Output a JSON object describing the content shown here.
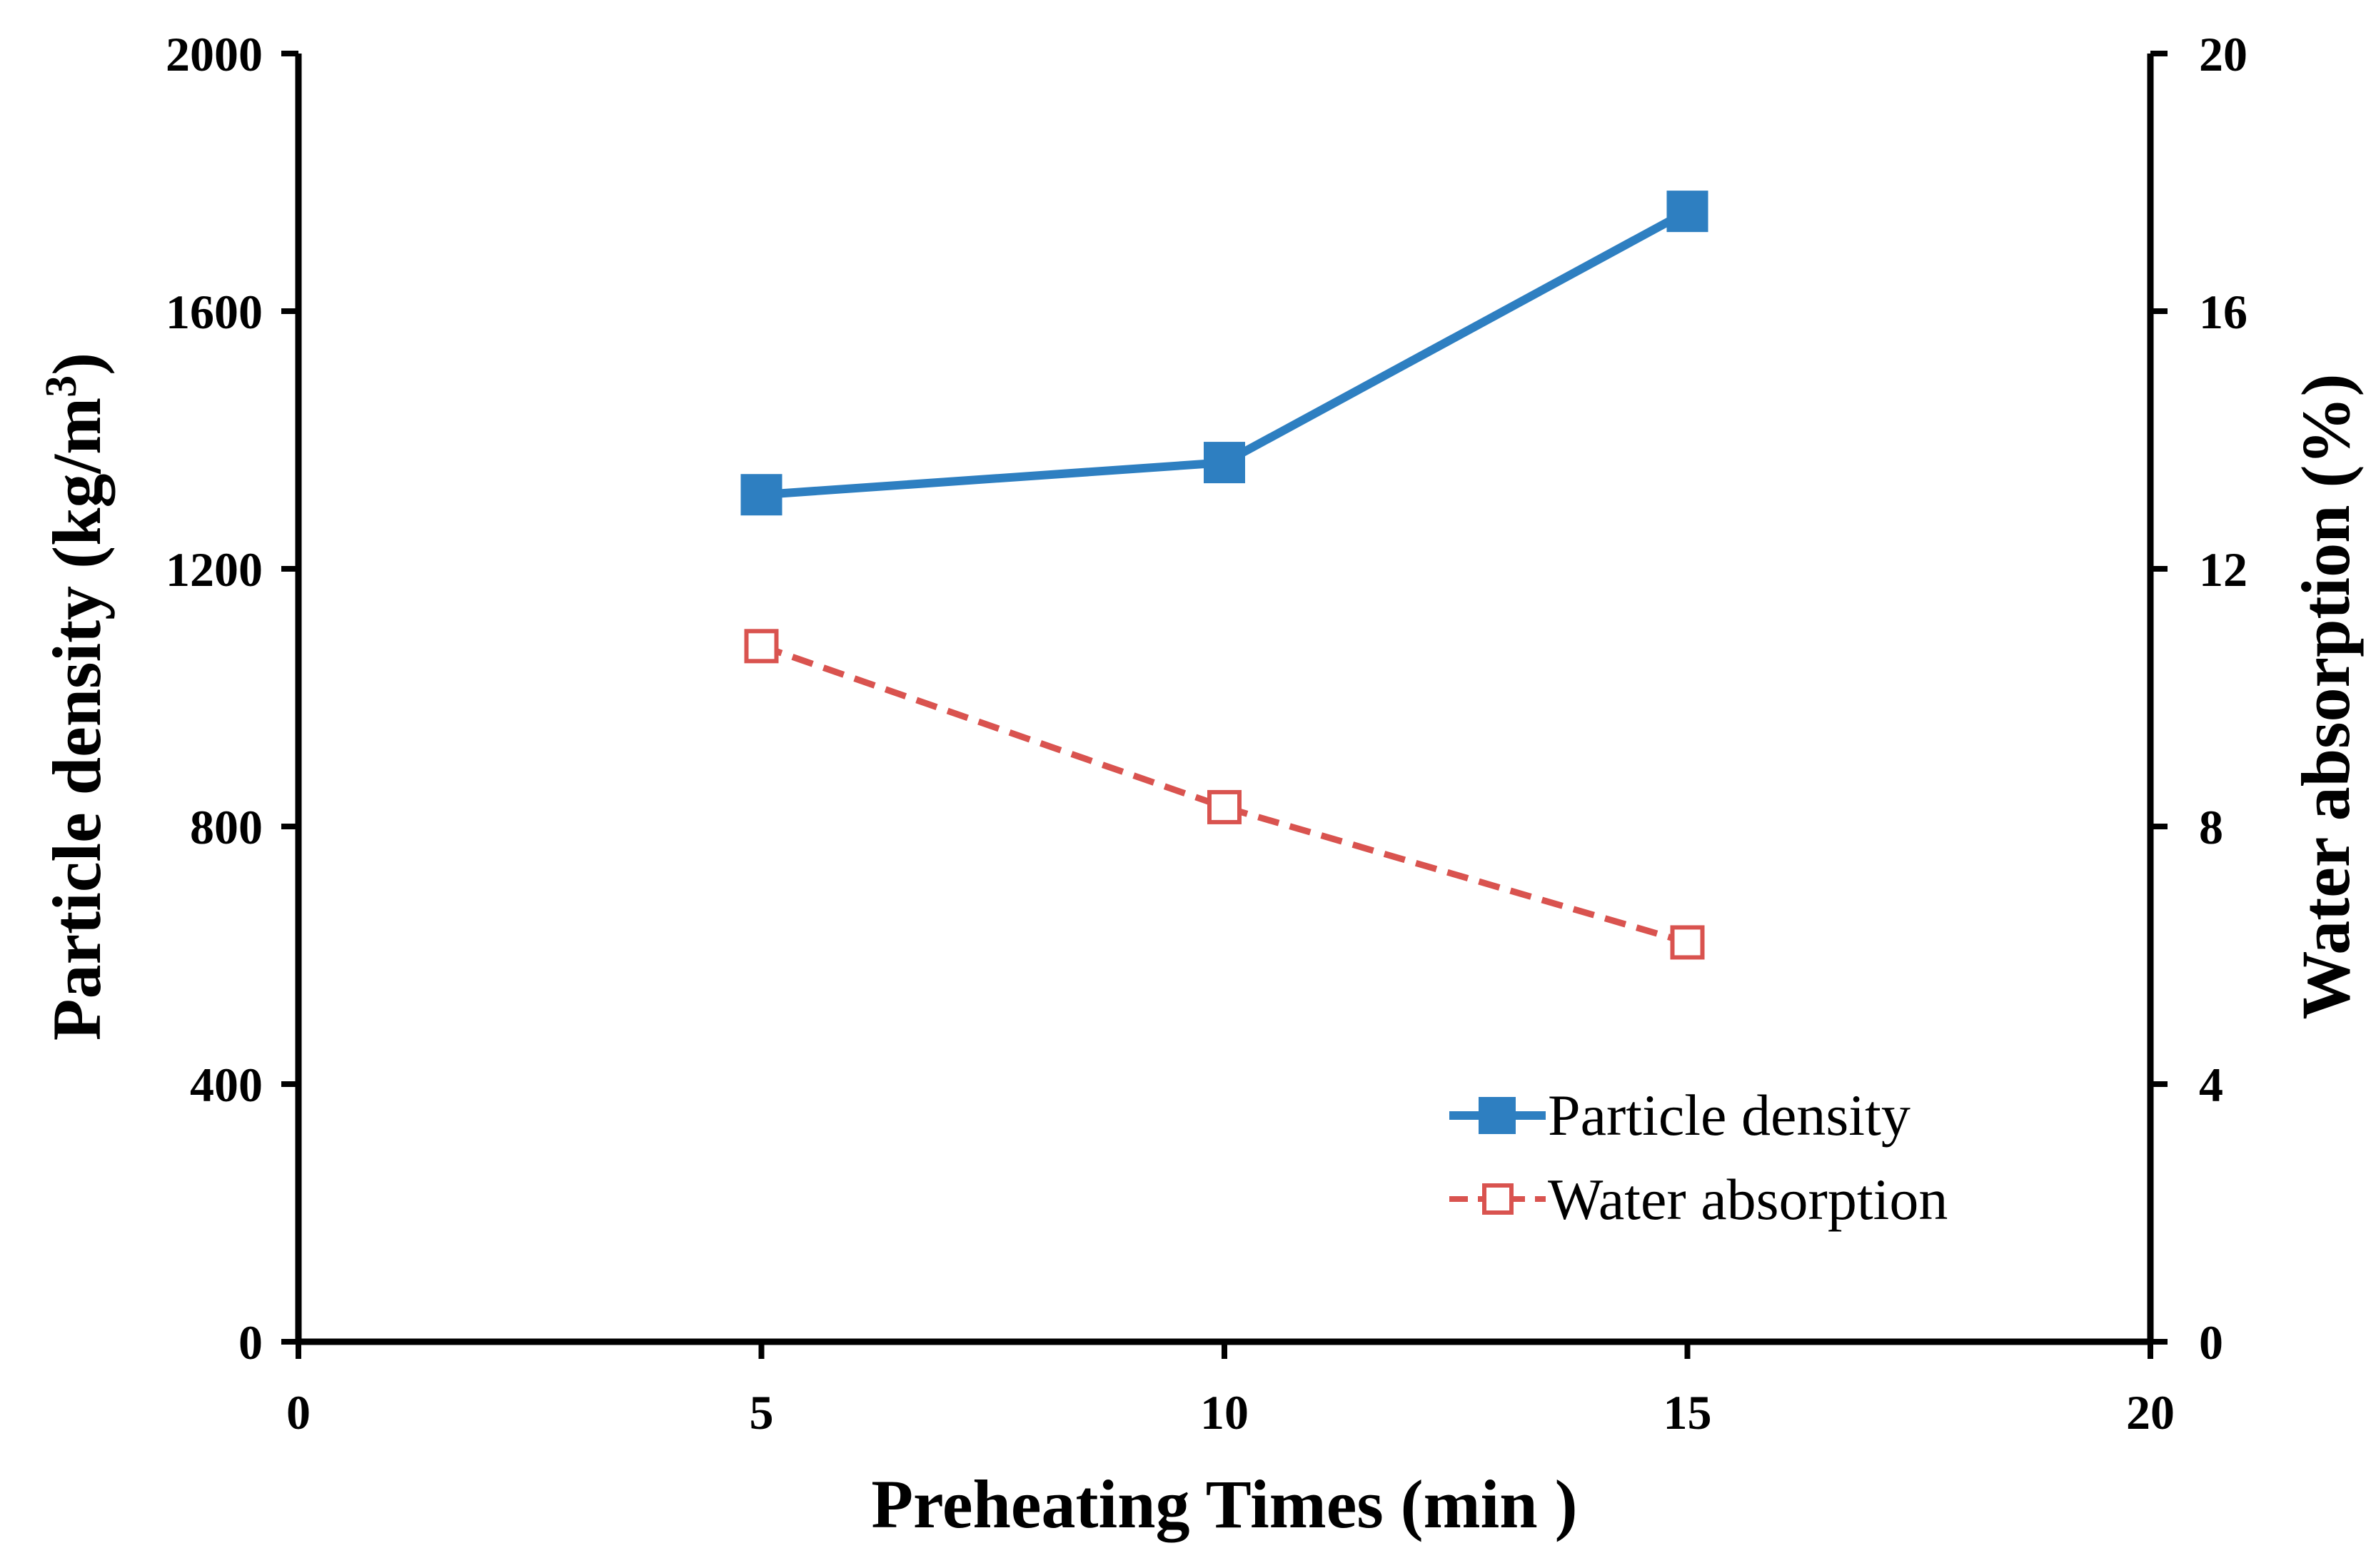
{
  "chart_data": {
    "type": "line",
    "title": "",
    "xlabel": "Preheating Times (min )",
    "ylabel_left": "Particle density (kg/m",
    "ylabel_left_sup": "3",
    "ylabel_left_close": ")",
    "ylabel_right": "Water absorption (%)",
    "xlim": [
      0,
      20
    ],
    "ylim_left": [
      0,
      2000
    ],
    "ylim_right": [
      0,
      20
    ],
    "x_ticks": [
      "0",
      "5",
      "10",
      "15",
      "20"
    ],
    "y_left_ticks": [
      "0",
      "400",
      "800",
      "1200",
      "1600",
      "2000"
    ],
    "y_right_ticks": [
      "0",
      "4",
      "8",
      "12",
      "16",
      "20"
    ],
    "grid": false,
    "legend_position": "bottom-right",
    "series": [
      {
        "name": "Particle density",
        "axis": "left",
        "color": "#2E7FC1",
        "line_style": "solid",
        "marker": "filled-square",
        "x": [
          5,
          10,
          15
        ],
        "y": [
          1315,
          1365,
          1755
        ]
      },
      {
        "name": "Water absorption",
        "axis": "right",
        "color": "#D9534F",
        "line_style": "dashed",
        "marker": "open-square",
        "x": [
          5,
          10,
          15
        ],
        "y": [
          10.8,
          8.3,
          6.2
        ]
      }
    ]
  }
}
